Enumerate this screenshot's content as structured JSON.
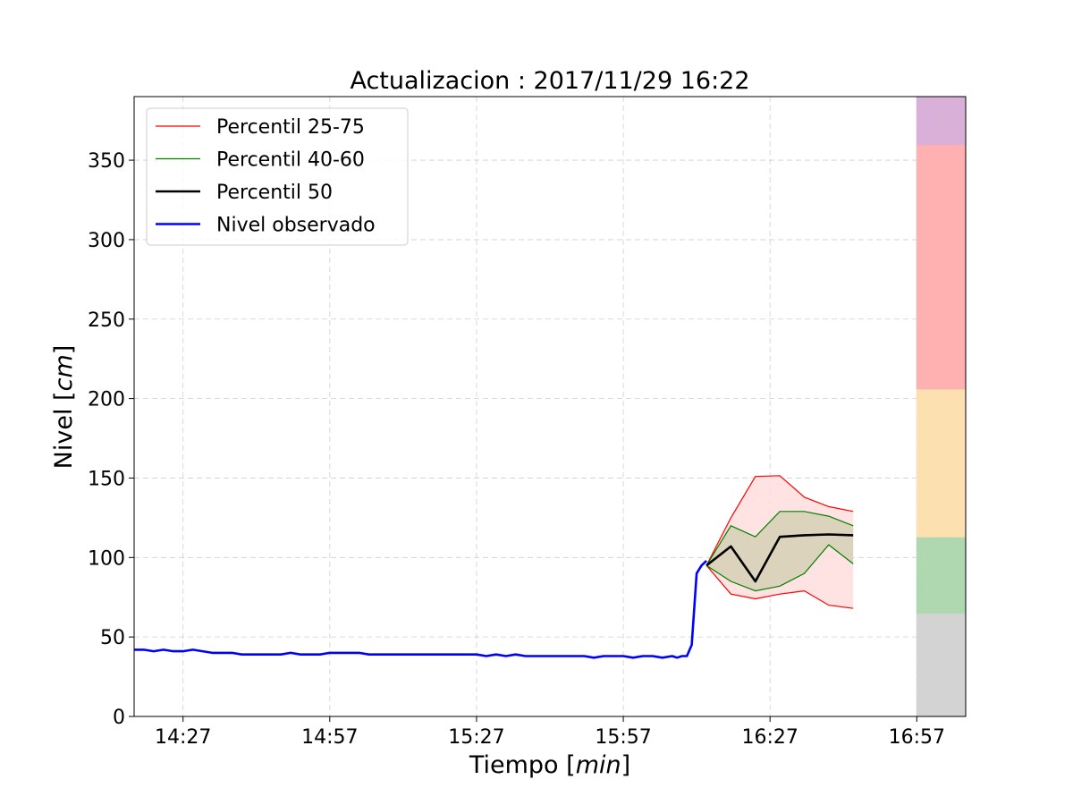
{
  "chart_data": {
    "type": "line",
    "title": "Actualizacion : 2017/11/29 16:22",
    "xlabel": {
      "text": "Tiempo ",
      "math": "min"
    },
    "ylabel": {
      "text": "Nivel ",
      "math": "cm"
    },
    "xlim": [
      "14:17",
      "16:57"
    ],
    "ylim": [
      0,
      390
    ],
    "x_ticks": [
      "14:27",
      "14:57",
      "15:27",
      "15:57",
      "16:27",
      "16:57"
    ],
    "y_ticks": [
      0,
      50,
      100,
      150,
      200,
      250,
      300,
      350
    ],
    "grid": true,
    "legend_position": "upper-left",
    "series": [
      {
        "name": "Nivel observado",
        "color": "#0000ff",
        "x": [
          "14:17",
          "14:19",
          "14:21",
          "14:23",
          "14:25",
          "14:27",
          "14:29",
          "14:31",
          "14:33",
          "14:35",
          "14:37",
          "14:39",
          "14:41",
          "14:43",
          "14:45",
          "14:47",
          "14:49",
          "14:51",
          "14:53",
          "14:55",
          "14:57",
          "14:59",
          "15:01",
          "15:03",
          "15:05",
          "15:07",
          "15:09",
          "15:11",
          "15:13",
          "15:15",
          "15:17",
          "15:19",
          "15:21",
          "15:23",
          "15:25",
          "15:27",
          "15:29",
          "15:31",
          "15:33",
          "15:35",
          "15:37",
          "15:39",
          "15:41",
          "15:43",
          "15:45",
          "15:47",
          "15:49",
          "15:51",
          "15:53",
          "15:55",
          "15:57",
          "15:59",
          "16:01",
          "16:03",
          "16:05",
          "16:07",
          "16:08",
          "16:09",
          "16:10",
          "16:11",
          "16:12",
          "16:13",
          "16:14"
        ],
        "y": [
          42,
          42,
          41,
          42,
          41,
          41,
          42,
          41,
          40,
          40,
          40,
          39,
          39,
          39,
          39,
          39,
          40,
          39,
          39,
          39,
          40,
          40,
          40,
          40,
          39,
          39,
          39,
          39,
          39,
          39,
          39,
          39,
          39,
          39,
          39,
          39,
          38,
          39,
          38,
          39,
          38,
          38,
          38,
          38,
          38,
          38,
          38,
          37,
          38,
          38,
          38,
          37,
          38,
          38,
          37,
          38,
          37,
          38,
          38,
          45,
          90,
          95,
          98
        ]
      },
      {
        "name": "Percentil 25-75",
        "color": "#ff0000",
        "fill": "#ffdddd",
        "x": [
          "16:14",
          "16:19",
          "16:24",
          "16:29",
          "16:34",
          "16:39",
          "16:44",
          "16:49"
        ],
        "upper": [
          95,
          125,
          151,
          151.5,
          138,
          132,
          129,
          null
        ],
        "lower": [
          95,
          77,
          74,
          77,
          79,
          70,
          68,
          null
        ]
      },
      {
        "name": "Percentil 40-60",
        "color": "#008000",
        "fill": "#d8d2b8",
        "x": [
          "16:14",
          "16:19",
          "16:24",
          "16:29",
          "16:34",
          "16:39",
          "16:44",
          "16:49"
        ],
        "upper": [
          95,
          120,
          113,
          129,
          129,
          126,
          120,
          null
        ],
        "lower": [
          95,
          85,
          79,
          82,
          90,
          108,
          96,
          null
        ]
      },
      {
        "name": "Percentil 50",
        "color": "#000000",
        "x": [
          "16:14",
          "16:19",
          "16:24",
          "16:29",
          "16:34",
          "16:39",
          "16:44",
          "16:49"
        ],
        "y": [
          95,
          107,
          85,
          113,
          114,
          114.5,
          114,
          null
        ]
      }
    ],
    "threshold_bands": [
      {
        "from": 0,
        "to": 65,
        "color": "#d3d3d3"
      },
      {
        "from": 65,
        "to": 113,
        "color": "#b0d8b0"
      },
      {
        "from": 113,
        "to": 206,
        "color": "#fde0b0"
      },
      {
        "from": 206,
        "to": 360,
        "color": "#ffb0b0"
      },
      {
        "from": 360,
        "to": 390,
        "color": "#d8b0d8"
      }
    ],
    "threshold_band_x": [
      "16:57",
      "17:07"
    ]
  }
}
